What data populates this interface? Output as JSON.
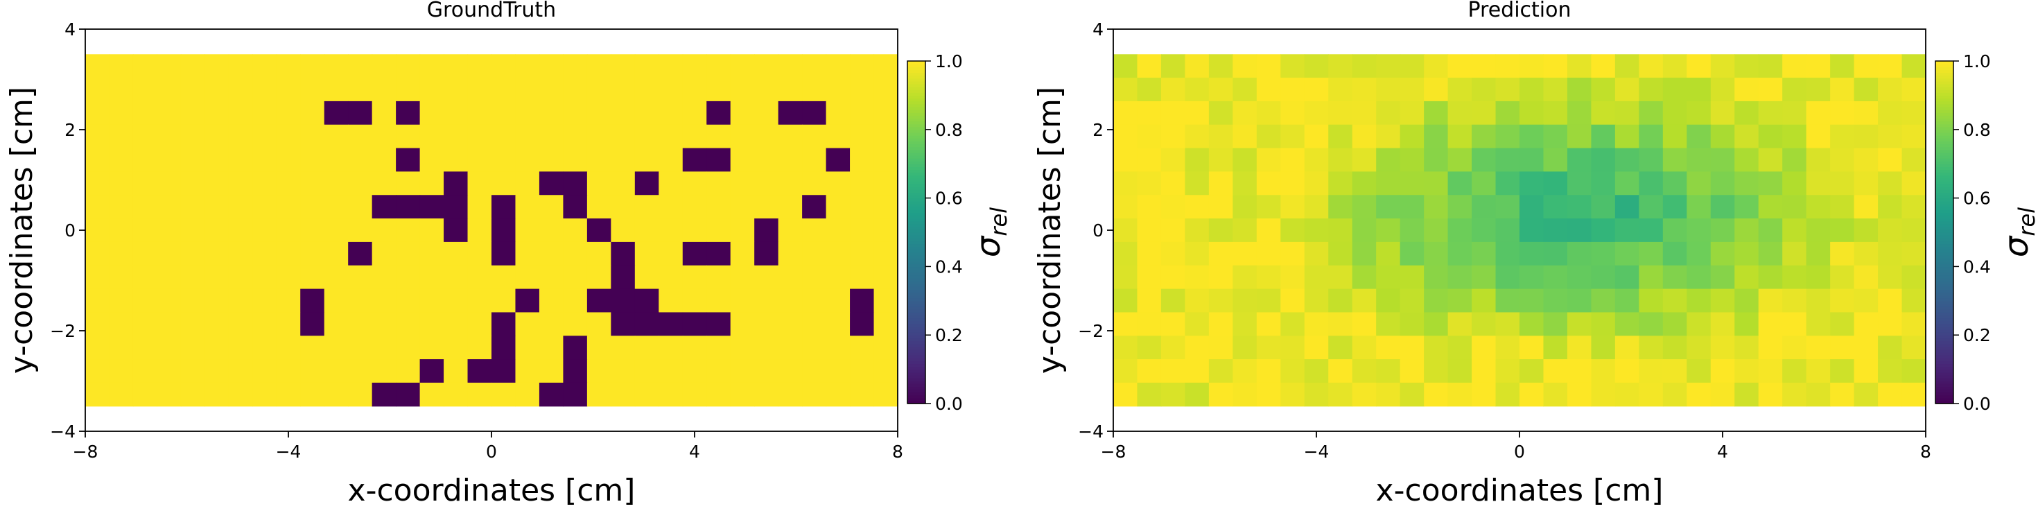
{
  "chart_data": [
    {
      "type": "heatmap",
      "title": "GroundTruth",
      "xlabel": "x-coordinates [cm]",
      "ylabel": "y-coordinates [cm]",
      "xlim": [
        -8,
        8
      ],
      "ylim": [
        -4,
        4
      ],
      "xticks": [
        -8,
        -4,
        0,
        4,
        8
      ],
      "yticks": [
        -4,
        -2,
        0,
        2,
        4
      ],
      "cell_x_edges": [
        -8,
        8
      ],
      "cell_y_edges": [
        -3.5,
        3.5
      ],
      "grid_cols": 34,
      "grid_rows": 15,
      "colorbar": {
        "label_symbol": "σ",
        "label_subscript": "rel",
        "min": 0.0,
        "max": 1.0,
        "ticks": [
          "0.0",
          "0.2",
          "0.4",
          "0.6",
          "0.8",
          "1.0"
        ]
      },
      "matrix_rows_top_to_bottom": [
        "1111111111111111111111111111111111",
        "1111111111111111111111111111111111",
        "1111111111001011111111111101100111",
        "1111111111111111111111111111111111",
        "1111111111111011111111111001111011",
        "1111111111111110111001101111111111",
        "1111111111110000101101111111110111",
        "1111111111111110101110111111011111",
        "1111111111101111101111011001011111",
        "1111111111111111111111011111111111",
        "1111111110111111110110001111111101",
        "1111111110111111101111000001111101",
        "1111111111111111101101111111111111",
        "1111111111111101001101111111111111",
        "1111111111110011111001111111111111"
      ]
    },
    {
      "type": "heatmap",
      "title": "Prediction",
      "xlabel": "x-coordinates [cm]",
      "ylabel": "y-coordinates [cm]",
      "xlim": [
        -8,
        8
      ],
      "ylim": [
        -4,
        4
      ],
      "xticks": [
        -8,
        -4,
        0,
        4,
        8
      ],
      "yticks": [
        -4,
        -2,
        0,
        2,
        4
      ],
      "cell_x_edges": [
        -8,
        8
      ],
      "cell_y_edges": [
        -3.5,
        3.5
      ],
      "grid_cols": 34,
      "grid_rows": 15,
      "colorbar": {
        "label_symbol": "σ",
        "label_subscript": "rel",
        "min": 0.0,
        "max": 1.0,
        "ticks": [
          "0.0",
          "0.2",
          "0.4",
          "0.6",
          "0.8",
          "1.0"
        ]
      },
      "center_x": 1.2,
      "center_y": 0.3,
      "spread_x": 6.0,
      "spread_y": 3.0,
      "min_value": 0.62,
      "max_value": 0.98
    }
  ]
}
